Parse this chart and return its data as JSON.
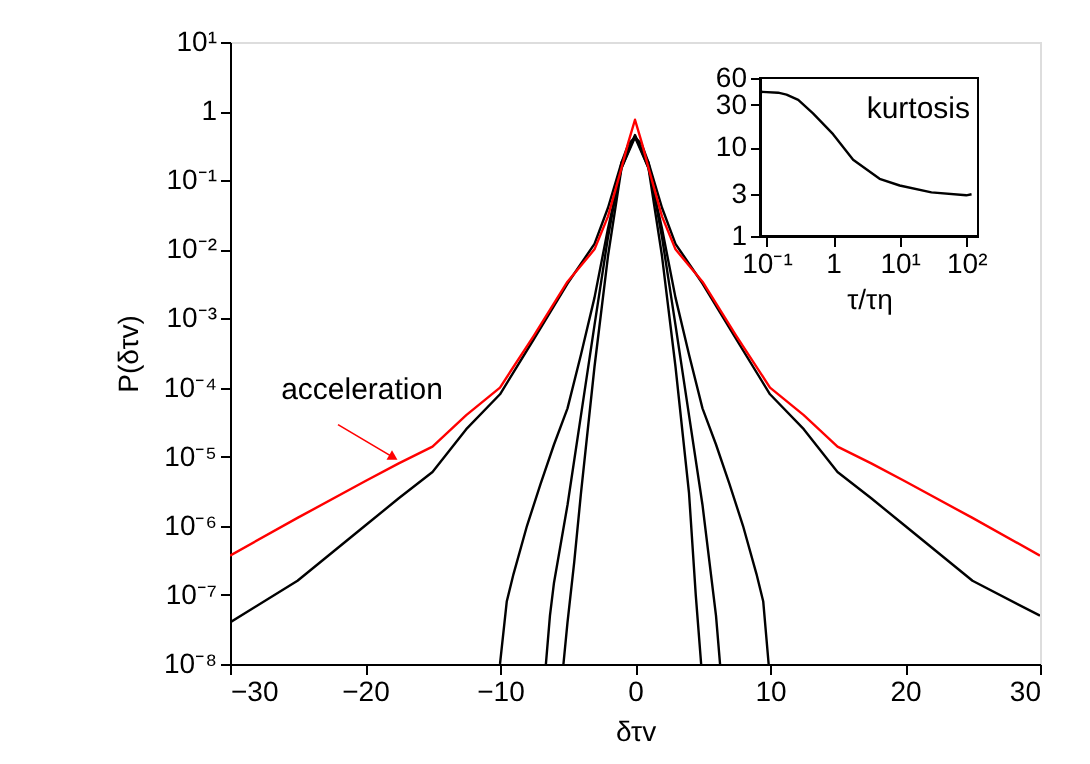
{
  "chart_data": [
    {
      "type": "line",
      "xlabel": "δτv",
      "ylabel": "P(δτv)",
      "log": "y",
      "grid": false,
      "legend": false,
      "line_style": "solid",
      "marker": "none",
      "xlim": [
        -30,
        30
      ],
      "xticks": [
        -30,
        -20,
        -10,
        0,
        10,
        20,
        30
      ],
      "ylim": [
        1e-08,
        10
      ],
      "yticks": [
        {
          "value": 1e-08,
          "label": "10⁻⁸"
        },
        {
          "value": 1e-07,
          "label": "10⁻⁷"
        },
        {
          "value": 1e-06,
          "label": "10⁻⁶"
        },
        {
          "value": 1e-05,
          "label": "10⁻⁵"
        },
        {
          "value": 0.0001,
          "label": "10⁻⁴"
        },
        {
          "value": 0.001,
          "label": "10⁻³"
        },
        {
          "value": 0.01,
          "label": "10⁻²"
        },
        {
          "value": 0.1,
          "label": "10⁻¹"
        },
        1,
        {
          "value": 10,
          "label": "10¹"
        }
      ],
      "annotations": [
        {
          "text": "acceleration",
          "x": -18,
          "y": 1e-05
        }
      ],
      "series": [
        {
          "color": "#000000",
          "x": [
            -30,
            -25,
            -20,
            -17.5,
            -15,
            -12.5,
            -10,
            -7.5,
            -5,
            -3,
            -2,
            -1,
            -0.5,
            0,
            0.5,
            1,
            2,
            3,
            5,
            7.5,
            10,
            12.5,
            15,
            17.5,
            20,
            25,
            30
          ],
          "values": [
            4e-08,
            1.6e-07,
            1e-06,
            2.5e-06,
            6e-06,
            2.5e-05,
            8e-05,
            0.0005,
            0.0032,
            0.012,
            0.04,
            0.18,
            0.33,
            0.42,
            0.33,
            0.18,
            0.04,
            0.012,
            0.0032,
            0.0005,
            8e-05,
            2.5e-05,
            6e-06,
            2.5e-06,
            1e-06,
            1.6e-07,
            5e-08
          ]
        },
        {
          "color": "#000000",
          "x": [
            -10,
            -9.5,
            -9,
            -8,
            -7,
            -6,
            -5,
            -4,
            -3,
            -2,
            -1,
            0,
            1,
            2,
            3,
            4,
            5,
            6,
            7,
            8,
            9,
            9.5,
            9.9
          ],
          "values": [
            1e-08,
            8e-08,
            2e-07,
            1e-06,
            4e-06,
            1.5e-05,
            5e-05,
            0.0003,
            0.002,
            0.02,
            0.15,
            0.42,
            0.15,
            0.02,
            0.002,
            0.0003,
            5e-05,
            1.5e-05,
            4e-06,
            1e-06,
            2e-07,
            8e-08,
            1e-08
          ]
        },
        {
          "color": "#000000",
          "x": [
            -6.6,
            -6.3,
            -6,
            -5,
            -4,
            -3,
            -2,
            -1,
            0,
            1,
            2,
            3,
            4,
            5,
            6,
            6.3
          ],
          "values": [
            1e-08,
            5e-08,
            1.5e-07,
            2e-06,
            4e-05,
            0.0008,
            0.015,
            0.18,
            0.43,
            0.18,
            0.015,
            0.0008,
            4e-05,
            2e-06,
            5e-08,
            1e-08
          ]
        },
        {
          "color": "#000000",
          "x": [
            -5.3,
            -5,
            -4.5,
            -4,
            -3,
            -2,
            -1,
            0,
            1,
            2,
            3,
            4,
            4.5,
            4.9
          ],
          "values": [
            1e-08,
            4e-08,
            3e-07,
            3e-06,
            0.0002,
            0.008,
            0.15,
            0.45,
            0.15,
            0.008,
            0.0002,
            3e-06,
            1e-07,
            1e-08
          ]
        },
        {
          "color": "#ff0000",
          "x": [
            -30,
            -25,
            -20,
            -17.5,
            -15,
            -12.5,
            -10,
            -7.5,
            -5,
            -3,
            -2,
            -1,
            -0.5,
            0,
            0.5,
            1,
            2,
            3,
            5,
            7.5,
            10,
            12.5,
            15,
            17.5,
            20,
            25,
            30
          ],
          "values": [
            3.7e-07,
            1.3e-06,
            4.4e-06,
            8e-06,
            1.4e-05,
            4e-05,
            0.0001,
            0.00056,
            0.0034,
            0.01,
            0.03,
            0.15,
            0.35,
            0.75,
            0.35,
            0.15,
            0.03,
            0.01,
            0.0034,
            0.00056,
            0.0001,
            4e-05,
            1.4e-05,
            8e-06,
            4.4e-06,
            1.3e-06,
            3.7e-07
          ]
        }
      ]
    },
    {
      "type": "line",
      "xlabel": "τ/τη",
      "log": "xy",
      "grid": false,
      "legend": false,
      "line_style": "solid",
      "marker": "none",
      "xlim": [
        0.08,
        150
      ],
      "xticks": [
        {
          "value": 0.1,
          "label": "10⁻¹"
        },
        1,
        {
          "value": 10,
          "label": "10¹"
        },
        {
          "value": 100,
          "label": "10²"
        }
      ],
      "ylim": [
        1,
        60
      ],
      "yticks": [
        1,
        3,
        10,
        30,
        60
      ],
      "annotations": [
        "kurtosis"
      ],
      "series": [
        {
          "color": "#000000",
          "x": [
            0.08,
            0.15,
            0.2,
            0.3,
            0.5,
            1,
            2,
            5,
            10,
            30,
            100,
            120
          ],
          "values": [
            42,
            41,
            39,
            34,
            24,
            14,
            7.2,
            4.4,
            3.7,
            3.1,
            2.87,
            2.95
          ]
        }
      ]
    }
  ]
}
